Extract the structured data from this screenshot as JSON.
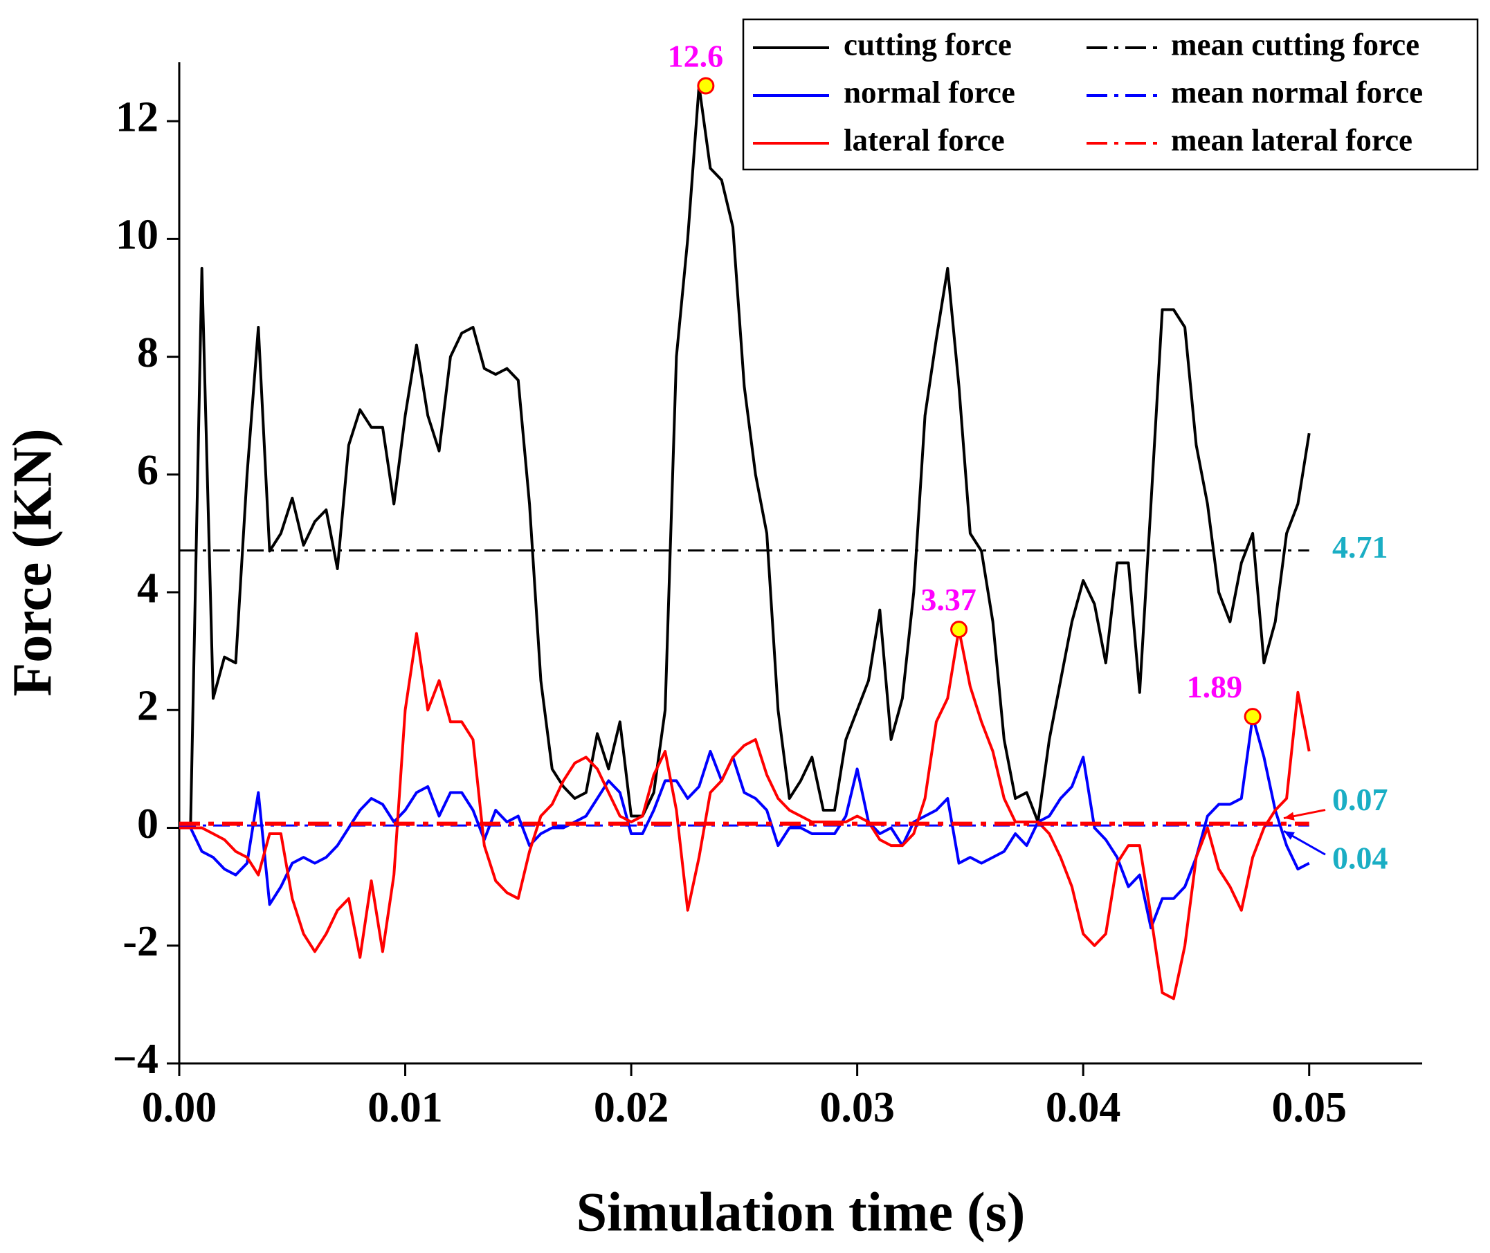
{
  "chart_data": {
    "type": "line",
    "xlabel": "Simulation time (s)",
    "ylabel": "Force (KN)",
    "xlim": [
      0,
      0.055
    ],
    "ylim": [
      -4,
      13
    ],
    "xticks": [
      {
        "value": 0,
        "label": "0.00"
      },
      0.01,
      0.02,
      0.03,
      0.04,
      0.05
    ],
    "yticks": [
      {
        "value": -4,
        "label": "−4"
      },
      -2,
      0,
      2,
      4,
      6,
      8,
      10,
      12
    ],
    "legend": "upper right",
    "x": [
      0,
      0.0005,
      0.001,
      0.0015,
      0.002,
      0.0025,
      0.003,
      0.0035,
      0.004,
      0.0045,
      0.005,
      0.0055,
      0.006,
      0.0065,
      0.007,
      0.0075,
      0.008,
      0.0085,
      0.009,
      0.0095,
      0.01,
      0.0105,
      0.011,
      0.0115,
      0.012,
      0.0125,
      0.013,
      0.0135,
      0.014,
      0.0145,
      0.015,
      0.0155,
      0.016,
      0.0165,
      0.017,
      0.0175,
      0.018,
      0.0185,
      0.019,
      0.0195,
      0.02,
      0.0205,
      0.021,
      0.0215,
      0.022,
      0.0225,
      0.023,
      0.0235,
      0.024,
      0.0245,
      0.025,
      0.0255,
      0.026,
      0.0265,
      0.027,
      0.0275,
      0.028,
      0.0285,
      0.029,
      0.0295,
      0.03,
      0.0305,
      0.031,
      0.0315,
      0.032,
      0.0325,
      0.033,
      0.0335,
      0.034,
      0.0345,
      0.035,
      0.0355,
      0.036,
      0.0365,
      0.037,
      0.0375,
      0.038,
      0.0385,
      0.039,
      0.0395,
      0.04,
      0.0405,
      0.041,
      0.0415,
      0.042,
      0.0425,
      0.043,
      0.0435,
      0.044,
      0.0445,
      0.045,
      0.0455,
      0.046,
      0.0465,
      0.047,
      0.0475,
      0.048,
      0.0485,
      0.049,
      0.0495,
      0.05
    ],
    "series": [
      {
        "name": "cutting force",
        "color": "#000000",
        "values": [
          0,
          0,
          9.5,
          2.2,
          2.9,
          2.8,
          6.0,
          8.5,
          4.7,
          5.0,
          5.6,
          4.8,
          5.2,
          5.4,
          4.4,
          6.5,
          7.1,
          6.8,
          6.8,
          5.5,
          7.0,
          8.2,
          7.0,
          6.4,
          8.0,
          8.4,
          8.5,
          7.8,
          7.7,
          7.8,
          7.6,
          5.5,
          2.5,
          1.0,
          0.7,
          0.5,
          0.6,
          1.6,
          1.0,
          1.8,
          0.2,
          0.2,
          0.6,
          2.0,
          8.0,
          10.0,
          12.6,
          11.2,
          11.0,
          10.2,
          7.5,
          6.0,
          5.0,
          2.0,
          0.5,
          0.8,
          1.2,
          0.3,
          0.3,
          1.5,
          2.0,
          2.5,
          3.7,
          1.5,
          2.2,
          4.0,
          7.0,
          8.3,
          9.5,
          7.5,
          5.0,
          4.7,
          3.5,
          1.5,
          0.5,
          0.6,
          0.1,
          1.5,
          2.5,
          3.5,
          4.2,
          3.8,
          2.8,
          4.5,
          4.5,
          2.3,
          5.5,
          8.8,
          8.8,
          8.5,
          6.5,
          5.5,
          4.0,
          3.5,
          4.5,
          5.0,
          2.8,
          3.5,
          5.0,
          5.5,
          6.7
        ]
      },
      {
        "name": "normal force",
        "color": "#0000ff",
        "values": [
          0,
          0,
          -0.4,
          -0.5,
          -0.7,
          -0.8,
          -0.6,
          0.6,
          -1.3,
          -1.0,
          -0.6,
          -0.5,
          -0.6,
          -0.5,
          -0.3,
          0,
          0.3,
          0.5,
          0.4,
          0.1,
          0.3,
          0.6,
          0.7,
          0.2,
          0.6,
          0.6,
          0.3,
          -0.2,
          0.3,
          0.1,
          0.2,
          -0.3,
          -0.1,
          0,
          0,
          0.1,
          0.2,
          0.5,
          0.8,
          0.6,
          -0.1,
          -0.1,
          0.3,
          0.8,
          0.8,
          0.5,
          0.7,
          1.3,
          0.8,
          1.2,
          0.6,
          0.5,
          0.3,
          -0.3,
          0,
          0,
          -0.1,
          -0.1,
          -0.1,
          0.2,
          1.0,
          0.1,
          -0.1,
          0,
          -0.3,
          0.1,
          0.2,
          0.3,
          0.5,
          -0.6,
          -0.5,
          -0.6,
          -0.5,
          -0.4,
          -0.1,
          -0.3,
          0.1,
          0.2,
          0.5,
          0.7,
          1.2,
          0,
          -0.2,
          -0.5,
          -1.0,
          -0.8,
          -1.7,
          -1.2,
          -1.2,
          -1.0,
          -0.5,
          0.2,
          0.4,
          0.4,
          0.5,
          1.89,
          1.2,
          0.3,
          -0.3,
          -0.7,
          -0.6
        ]
      },
      {
        "name": "lateral force",
        "color": "#ff0000",
        "values": [
          0,
          0,
          0,
          -0.1,
          -0.2,
          -0.4,
          -0.5,
          -0.8,
          -0.1,
          -0.1,
          -1.2,
          -1.8,
          -2.1,
          -1.8,
          -1.4,
          -1.2,
          -2.2,
          -0.9,
          -2.1,
          -0.8,
          2.0,
          3.3,
          2.0,
          2.5,
          1.8,
          1.8,
          1.5,
          -0.3,
          -0.9,
          -1.1,
          -1.2,
          -0.4,
          0.2,
          0.4,
          0.8,
          1.1,
          1.2,
          1.0,
          0.6,
          0.2,
          0.1,
          0.2,
          0.9,
          1.3,
          0.3,
          -1.4,
          -0.5,
          0.6,
          0.8,
          1.2,
          1.4,
          1.5,
          0.9,
          0.5,
          0.3,
          0.2,
          0.1,
          0.1,
          0.1,
          0.1,
          0.2,
          0.1,
          -0.2,
          -0.3,
          -0.3,
          -0.1,
          0.5,
          1.8,
          2.2,
          3.37,
          2.4,
          1.8,
          1.3,
          0.5,
          0.1,
          0.1,
          0.1,
          -0.1,
          -0.5,
          -1.0,
          -1.8,
          -2.0,
          -1.8,
          -0.6,
          -0.3,
          -0.3,
          -1.5,
          -2.8,
          -2.9,
          -2.0,
          -0.5,
          0,
          -0.7,
          -1.0,
          -1.4,
          -0.5,
          0,
          0.3,
          0.5,
          2.3,
          1.3
        ]
      }
    ],
    "mean_lines": [
      {
        "name": "mean cutting force",
        "color": "#000000",
        "value": 4.71
      },
      {
        "name": "mean normal force",
        "color": "#0000ff",
        "value": 0.04
      },
      {
        "name": "mean lateral force",
        "color": "#ff0000",
        "value": 0.07
      }
    ],
    "peak_labels": [
      {
        "x": 0.0233,
        "value": 12.6
      },
      {
        "x": 0.0345,
        "value": 3.37
      },
      {
        "x": 0.0475,
        "value": 1.89
      }
    ]
  }
}
